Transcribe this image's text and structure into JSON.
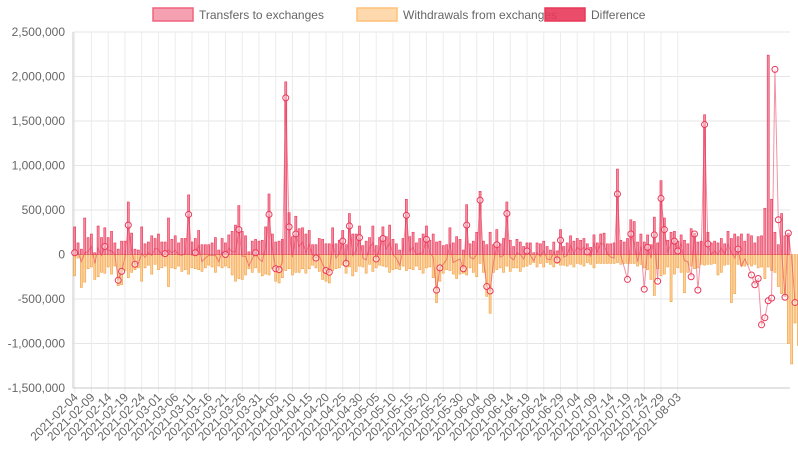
{
  "chart_data": {
    "type": "bar",
    "series": [
      {
        "name": "Transfers to exchanges",
        "color": "#f0637d",
        "values": [
          310000,
          130000,
          60000,
          410000,
          190000,
          230000,
          20000,
          320000,
          190000,
          300000,
          190000,
          260000,
          130000,
          60000,
          150000,
          150000,
          590000,
          240000,
          60000,
          50000,
          310000,
          120000,
          140000,
          210000,
          180000,
          230000,
          140000,
          140000,
          410000,
          170000,
          210000,
          130000,
          180000,
          180000,
          670000,
          140000,
          180000,
          270000,
          110000,
          110000,
          110000,
          130000,
          190000,
          50000,
          180000,
          130000,
          220000,
          260000,
          330000,
          550000,
          260000,
          210000,
          30000,
          150000,
          170000,
          150000,
          160000,
          310000,
          680000,
          230000,
          140000,
          150000,
          170000,
          1940000,
          470000,
          200000,
          430000,
          290000,
          300000,
          230000,
          270000,
          110000,
          110000,
          180000,
          170000,
          120000,
          120000,
          300000,
          120000,
          160000,
          270000,
          110000,
          460000,
          230000,
          230000,
          320000,
          100000,
          150000,
          190000,
          320000,
          100000,
          190000,
          310000,
          200000,
          330000,
          170000,
          120000,
          50000,
          180000,
          620000,
          200000,
          250000,
          130000,
          180000,
          230000,
          320000,
          160000,
          230000,
          140000,
          150000,
          100000,
          110000,
          300000,
          130000,
          200000,
          170000,
          50000,
          560000,
          120000,
          150000,
          250000,
          710000,
          150000,
          110000,
          250000,
          110000,
          280000,
          120000,
          180000,
          590000,
          160000,
          90000,
          170000,
          140000,
          90000,
          130000,
          130000,
          20000,
          130000,
          120000,
          150000,
          90000,
          50000,
          140000,
          40000,
          280000,
          90000,
          130000,
          210000,
          150000,
          180000,
          160000,
          180000,
          120000,
          80000,
          220000,
          130000,
          230000,
          240000,
          120000,
          120000,
          130000,
          960000,
          160000,
          140000,
          180000,
          390000,
          370000,
          140000,
          230000,
          140000,
          220000,
          110000,
          420000,
          130000,
          830000,
          410000,
          160000,
          250000,
          260000,
          150000,
          220000,
          160000,
          120000,
          290000,
          240000,
          140000,
          150000,
          1570000,
          250000,
          130000,
          150000,
          130000,
          180000,
          120000,
          260000,
          180000,
          230000,
          200000,
          230000,
          150000,
          230000,
          210000,
          130000,
          200000,
          210000,
          520000,
          2240000,
          620000,
          250000,
          110000,
          460000,
          210000,
          240000
        ]
      },
      {
        "name": "Withdrawals from exchanges",
        "color": "#ffc078",
        "values": [
          -240000,
          -40000,
          -370000,
          -310000,
          -160000,
          -140000,
          -280000,
          -250000,
          -200000,
          -210000,
          -140000,
          -220000,
          -130000,
          -350000,
          -340000,
          -180000,
          -260000,
          -200000,
          -170000,
          -150000,
          -300000,
          -150000,
          -120000,
          -220000,
          -110000,
          -170000,
          -150000,
          -130000,
          -360000,
          -150000,
          -160000,
          -130000,
          -190000,
          -170000,
          -220000,
          -150000,
          -160000,
          -170000,
          -190000,
          -150000,
          -120000,
          -140000,
          -200000,
          -130000,
          -150000,
          -130000,
          -150000,
          -230000,
          -300000,
          -270000,
          -280000,
          -230000,
          -160000,
          -200000,
          -150000,
          -200000,
          -240000,
          -220000,
          -230000,
          -160000,
          -300000,
          -320000,
          -260000,
          -180000,
          -160000,
          -230000,
          -200000,
          -200000,
          -160000,
          -210000,
          -160000,
          -120000,
          -150000,
          -190000,
          -280000,
          -300000,
          -320000,
          -180000,
          -160000,
          -150000,
          -120000,
          -210000,
          -140000,
          -240000,
          -190000,
          -130000,
          -140000,
          -210000,
          -110000,
          -190000,
          -150000,
          -120000,
          -130000,
          -140000,
          -200000,
          -170000,
          -160000,
          -170000,
          -130000,
          -180000,
          -160000,
          -170000,
          -130000,
          -170000,
          -210000,
          -150000,
          -140000,
          -260000,
          -540000,
          -300000,
          -210000,
          -170000,
          -180000,
          -220000,
          -270000,
          -220000,
          -210000,
          -230000,
          -150000,
          -200000,
          -250000,
          -100000,
          -200000,
          -470000,
          -660000,
          -200000,
          -170000,
          -150000,
          -200000,
          -130000,
          -190000,
          -150000,
          -150000,
          -190000,
          -140000,
          -130000,
          -110000,
          -90000,
          -140000,
          -100000,
          -140000,
          -90000,
          -110000,
          -140000,
          -100000,
          -120000,
          -120000,
          -130000,
          -110000,
          -140000,
          -100000,
          -110000,
          -130000,
          -90000,
          -110000,
          -150000,
          -100000,
          -100000,
          -100000,
          -100000,
          -100000,
          -100000,
          -90000,
          -110000,
          -100000,
          -100000,
          -100000,
          -100000,
          -130000,
          -110000,
          -150000,
          -170000,
          -280000,
          -460000,
          -160000,
          -240000,
          -220000,
          -140000,
          -530000,
          -220000,
          -150000,
          -200000,
          -430000,
          -200000,
          -130000,
          -160000,
          -150000,
          -110000,
          -120000,
          -110000,
          -110000,
          -100000,
          -230000,
          -200000,
          -120000,
          -110000,
          -540000,
          -440000,
          -110000,
          -130000,
          -130000,
          -110000,
          -130000,
          -110000,
          -150000,
          -140000,
          -270000,
          -140000,
          -180000,
          -200000,
          -360000,
          -440000,
          -470000,
          -1000000,
          -1230000,
          -770000,
          -1020000,
          -160000,
          -230000,
          -590000,
          -220000,
          -260000,
          -540000,
          -770000
        ]
      },
      {
        "name": "Difference",
        "color": "#e8385a",
        "values": [
          20000,
          30000,
          -80000,
          20000,
          30000,
          90000,
          -100000,
          70000,
          -10000,
          90000,
          50000,
          40000,
          0,
          -290000,
          -190000,
          -30000,
          330000,
          40000,
          -110000,
          -100000,
          10000,
          -30000,
          20000,
          -10000,
          70000,
          60000,
          -10000,
          10000,
          50000,
          20000,
          50000,
          0,
          -10000,
          10000,
          450000,
          -10000,
          20000,
          100000,
          -80000,
          -40000,
          -10000,
          -10000,
          -10000,
          -80000,
          30000,
          0,
          70000,
          30000,
          30000,
          280000,
          -20000,
          -20000,
          -130000,
          -50000,
          20000,
          -50000,
          -80000,
          90000,
          450000,
          70000,
          -160000,
          -170000,
          -90000,
          1760000,
          310000,
          -30000,
          230000,
          90000,
          140000,
          20000,
          110000,
          -10000,
          -40000,
          -10000,
          -110000,
          -180000,
          -200000,
          120000,
          -40000,
          10000,
          150000,
          -100000,
          320000,
          -10000,
          40000,
          190000,
          -40000,
          -60000,
          80000,
          130000,
          -50000,
          70000,
          180000,
          60000,
          130000,
          0,
          -40000,
          -120000,
          50000,
          440000,
          40000,
          80000,
          0,
          10000,
          20000,
          170000,
          20000,
          -30000,
          -400000,
          -150000,
          -110000,
          -60000,
          120000,
          -90000,
          -70000,
          -50000,
          -160000,
          330000,
          -30000,
          -50000,
          0,
          610000,
          -50000,
          -360000,
          -410000,
          -90000,
          110000,
          -30000,
          -10000,
          460000,
          -30000,
          -60000,
          20000,
          0,
          -50000,
          40000,
          -10000,
          -70000,
          20000,
          -20000,
          40000,
          -50000,
          -60000,
          30000,
          -60000,
          160000,
          -30000,
          -10000,
          100000,
          10000,
          80000,
          50000,
          80000,
          30000,
          -20000,
          120000,
          30000,
          130000,
          110000,
          10000,
          -30000,
          -40000,
          680000,
          -10000,
          -140000,
          -280000,
          230000,
          130000,
          -80000,
          90000,
          -390000,
          80000,
          -40000,
          220000,
          -300000,
          630000,
          280000,
          30000,
          120000,
          150000,
          40000,
          120000,
          -70000,
          -80000,
          -250000,
          230000,
          -400000,
          40000,
          1460000,
          120000,
          0,
          40000,
          0,
          70000,
          10000,
          110000,
          30000,
          -40000,
          60000,
          -130000,
          -50000,
          -130000,
          -230000,
          -340000,
          -270000,
          -790000,
          -710000,
          -520000,
          -490000,
          2080000,
          390000,
          30000,
          -480000,
          240000,
          -50000,
          -540000
        ]
      },
      {
        "name": "Difference markers",
        "color": "#e8385a",
        "values": [
          210,
          15,
          40,
          63,
          78,
          89,
          105,
          108,
          110,
          125,
          180,
          185,
          190
        ]
      }
    ],
    "x_ticks": [
      "2021-02-04",
      "2021-02-09",
      "2021-02-14",
      "2021-02-19",
      "2021-02-24",
      "2021-03-01",
      "2021-03-06",
      "2021-03-11",
      "2021-03-16",
      "2021-03-21",
      "2021-03-26",
      "2021-03-31",
      "2021-04-05",
      "2021-04-10",
      "2021-04-15",
      "2021-04-20",
      "2021-04-25",
      "2021-04-30",
      "2021-05-05",
      "2021-05-10",
      "2021-05-15",
      "2021-05-20",
      "2021-05-25",
      "2021-05-30",
      "2021-06-04",
      "2021-06-09",
      "2021-06-14",
      "2021-06-19",
      "2021-06-24",
      "2021-06-29",
      "2021-07-04",
      "2021-07-09",
      "2021-07-14",
      "2021-07-19",
      "2021-07-24",
      "2021-07-29",
      "2021-08-03"
    ],
    "y_ticks": [
      "2,500,000",
      "2,000,000",
      "1,500,000",
      "1,000,000",
      "500,000",
      "0",
      "-500,000",
      "-1,000,000",
      "-1,500,000"
    ],
    "ylim": [
      -1500000,
      2500000
    ],
    "legend_position": "top-center",
    "grid": true
  }
}
